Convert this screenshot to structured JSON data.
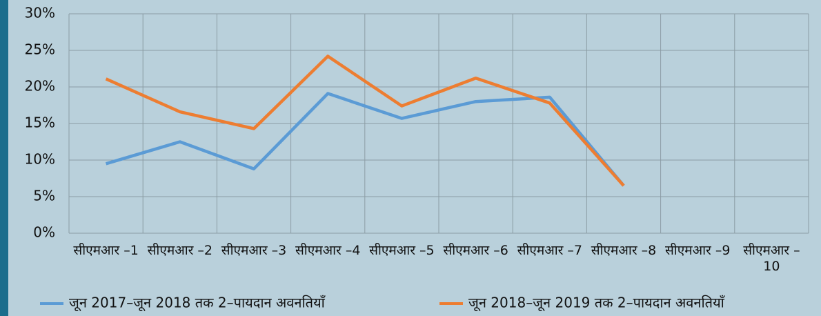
{
  "chart_data": {
    "type": "line",
    "categories": [
      "सीएमआर –1",
      "सीएमआर –2",
      "सीएमआर –3",
      "सीएमआर –4",
      "सीएमआर –5",
      "सीएमआर –6",
      "सीएमआर –7",
      "सीएमआर –8",
      "सीएमआर –9",
      "सीएमआर –10"
    ],
    "series": [
      {
        "name": "जून 2017–जून 2018 तक 2–पायदान अवनतियाँ",
        "color": "#5b9bd5",
        "values": [
          9.5,
          12.5,
          8.8,
          19.1,
          15.7,
          18.0,
          18.6,
          6.5,
          null,
          null
        ]
      },
      {
        "name": "जून 2018–जून 2019 तक 2–पायदान अवनतियाँ",
        "color": "#ed7d31",
        "values": [
          21.1,
          16.6,
          14.3,
          24.2,
          17.4,
          21.2,
          17.8,
          6.5,
          null,
          null
        ]
      }
    ],
    "ylim": [
      0,
      30
    ],
    "yticks": [
      {
        "value": 0,
        "label": "0%"
      },
      {
        "value": 5,
        "label": "5%"
      },
      {
        "value": 10,
        "label": "10%"
      },
      {
        "value": 15,
        "label": "15%"
      },
      {
        "value": 20,
        "label": "20%"
      },
      {
        "value": 25,
        "label": "25%"
      },
      {
        "value": 30,
        "label": "30%"
      }
    ],
    "grid": true
  }
}
